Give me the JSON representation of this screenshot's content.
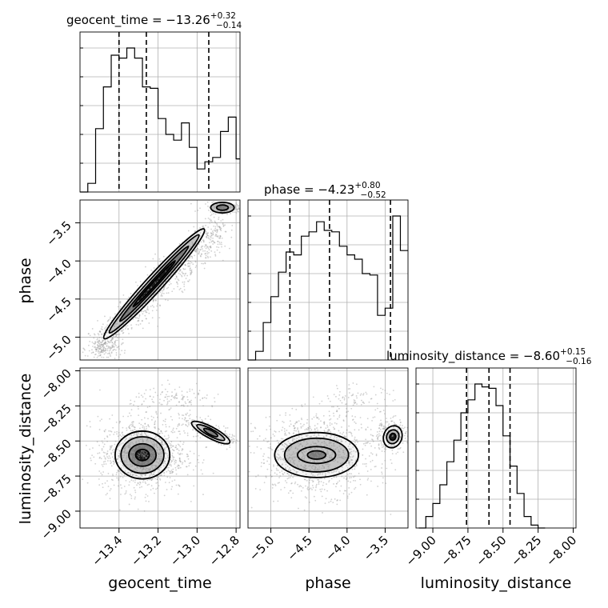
{
  "chart_data": {
    "type": "corner",
    "parameters": [
      "geocent_time",
      "phase",
      "luminosity_distance"
    ],
    "axis_labels": {
      "geocent_time": "geocent_time",
      "phase": "phase",
      "luminosity_distance": "luminosity_distance"
    },
    "ranges": {
      "geocent_time": [
        -13.6,
        -12.78
      ],
      "phase": [
        -5.3,
        -3.2
      ],
      "luminosity_distance": [
        -9.12,
        -7.98
      ]
    },
    "ticks": {
      "geocent_time": {
        "values": [
          -13.4,
          -13.2,
          -13.0,
          -12.8
        ],
        "labels": [
          "−13.4",
          "−13.2",
          "−13.0",
          "−12.8"
        ]
      },
      "phase": {
        "values": [
          -5.0,
          -4.5,
          -4.0,
          -3.5
        ],
        "labels": [
          "−5.0",
          "−4.5",
          "−4.0",
          "−3.5"
        ]
      },
      "luminosity_distance_y": {
        "values": [
          -8.0,
          -8.25,
          -8.5,
          -8.75,
          -9.0
        ],
        "labels": [
          "−8.00",
          "−8.25",
          "−8.50",
          "−8.75",
          "−9.00"
        ]
      },
      "luminosity_distance_x": {
        "values": [
          -9.0,
          -8.75,
          -8.5,
          -8.25,
          -8.0
        ],
        "labels": [
          "−9.00",
          "−8.75",
          "−8.50",
          "−8.25",
          "−8.00"
        ]
      }
    },
    "titles": [
      {
        "param": "geocent_time",
        "text": "geocent_time = −13.26",
        "sup": "+0.32",
        "sub": "−0.14"
      },
      {
        "param": "phase",
        "text": "phase = −4.23",
        "sup": "+0.80",
        "sub": "−0.52"
      },
      {
        "param": "luminosity_distance",
        "text": "luminosity_distance = −8.60",
        "sup": "+0.15",
        "sub": "−0.16"
      }
    ],
    "quantiles": {
      "geocent_time": [
        -13.4,
        -13.26,
        -12.94
      ],
      "phase": [
        -4.75,
        -4.23,
        -3.43
      ],
      "luminosity_distance": [
        -8.76,
        -8.6,
        -8.45
      ]
    },
    "histograms": {
      "geocent_time": {
        "edges": [
          -13.6,
          -13.56,
          -13.52,
          -13.48,
          -13.44,
          -13.4,
          -13.36,
          -13.32,
          -13.28,
          -13.24,
          -13.2,
          -13.16,
          -13.12,
          -13.08,
          -13.04,
          -13.0,
          -12.96,
          -12.92,
          -12.88,
          -12.84,
          -12.8,
          -12.78
        ],
        "counts": [
          0.0,
          0.06,
          0.44,
          0.73,
          0.95,
          0.93,
          1.0,
          0.93,
          0.73,
          0.72,
          0.51,
          0.4,
          0.36,
          0.48,
          0.31,
          0.16,
          0.21,
          0.24,
          0.42,
          0.52,
          0.23
        ]
      },
      "phase": {
        "edges": [
          -5.3,
          -5.2,
          -5.1,
          -5.0,
          -4.9,
          -4.8,
          -4.7,
          -4.6,
          -4.5,
          -4.4,
          -4.3,
          -4.2,
          -4.1,
          -4.0,
          -3.9,
          -3.8,
          -3.7,
          -3.6,
          -3.5,
          -3.4,
          -3.3,
          -3.2
        ],
        "counts": [
          0.0,
          0.06,
          0.26,
          0.44,
          0.61,
          0.75,
          0.73,
          0.86,
          0.89,
          0.96,
          0.9,
          0.89,
          0.79,
          0.73,
          0.7,
          0.6,
          0.59,
          0.31,
          0.36,
          1.0,
          0.76
        ]
      },
      "luminosity_distance": {
        "edges": [
          -9.1,
          -9.05,
          -9.0,
          -8.95,
          -8.9,
          -8.85,
          -8.8,
          -8.75,
          -8.7,
          -8.65,
          -8.6,
          -8.55,
          -8.5,
          -8.45,
          -8.4,
          -8.35,
          -8.3,
          -8.25,
          -8.2
        ],
        "counts": [
          0.0,
          0.08,
          0.17,
          0.3,
          0.46,
          0.61,
          0.8,
          0.89,
          1.0,
          0.98,
          0.97,
          0.85,
          0.64,
          0.43,
          0.24,
          0.08,
          0.02,
          0.0
        ]
      }
    },
    "scatter_pairs": [
      {
        "x": "geocent_time",
        "y": "phase",
        "relation": "positive linear with wrap near phase −3.3 at geocent_time > −13.0"
      },
      {
        "x": "geocent_time",
        "y": "luminosity_distance",
        "relation": "main blob near (−13.3, −8.6), secondary ridge near (−12.9, −8.45)"
      },
      {
        "x": "phase",
        "y": "luminosity_distance",
        "relation": "main blob near (−4.4, −8.6), secondary ridge near (−3.4, −8.45)"
      }
    ],
    "grid": true
  }
}
